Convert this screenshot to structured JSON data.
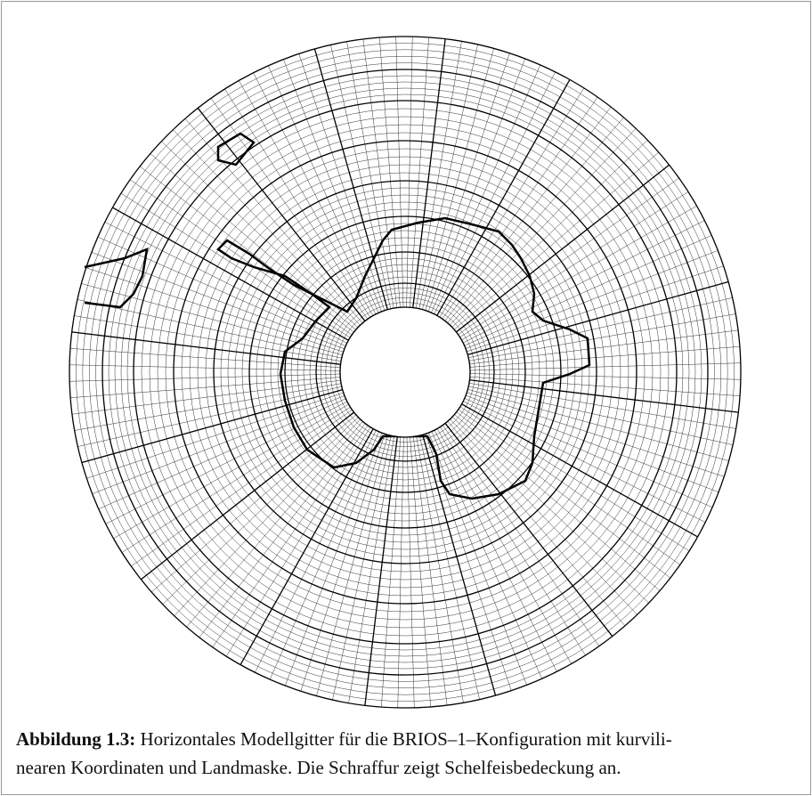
{
  "caption": {
    "label": "Abbildung 1.3:",
    "lines": [
      "Horizontales Modellgitter für die BRIOS–1–Konfiguration mit kurvili-",
      "nearen Koordinaten und Landmaske. Die Schraffur zeigt Schelfeisbedeckung an."
    ]
  }
}
